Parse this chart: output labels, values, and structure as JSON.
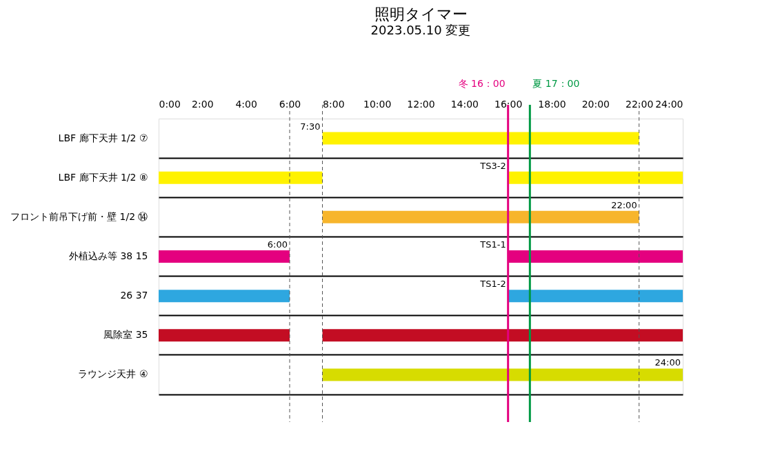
{
  "chart_data": {
    "type": "bar",
    "orientation": "horizontal",
    "title": "照明タイマー",
    "subtitle": "2023.05.10 変更",
    "categories": [
      "LBF 廊下天井 1/2  ⑦",
      "LBF 廊下天井 1/2  ⑧",
      "フロント前吊下げ前・壁 1/2  ⑭",
      "外植込み等  38  15",
      "26  37",
      "風除室  35",
      "ラウンジ天井  ④"
    ],
    "series": [
      {
        "base": [
          7.5,
          0,
          7.5,
          0,
          0,
          0,
          7.5
        ],
        "values": [
          14.5,
          7.5,
          14.5,
          6,
          6,
          6,
          16.5
        ],
        "colors": [
          "#fff200",
          "#fff200",
          "#f7b52c",
          "#e4007f",
          "#2ea7e0",
          "#c30d23",
          "#d7dc00"
        ]
      },
      {
        "base": [
          null,
          16,
          null,
          16,
          16,
          7.5,
          null
        ],
        "values": [
          null,
          8,
          null,
          8,
          8,
          16.5,
          null
        ],
        "colors": [
          null,
          "#fff200",
          null,
          "#e4007f",
          "#2ea7e0",
          "#c30d23",
          null
        ]
      }
    ],
    "xlim": [
      0,
      24
    ],
    "xticks": [
      {
        "value": 0,
        "label": "0:00"
      },
      {
        "value": 2,
        "label": "2:00"
      },
      {
        "value": 4,
        "label": "4:00"
      },
      {
        "value": 6,
        "label": "6:00"
      },
      {
        "value": 8,
        "label": "8:00"
      },
      {
        "value": 10,
        "label": "10:00"
      },
      {
        "value": 12,
        "label": "12:00"
      },
      {
        "value": 14,
        "label": "14:00"
      },
      {
        "value": 16,
        "label": "16:00"
      },
      {
        "value": 18,
        "label": "18:00"
      },
      {
        "value": 20,
        "label": "20:00"
      },
      {
        "value": 22,
        "label": "22:00"
      },
      {
        "value": 24,
        "label": "24:00"
      }
    ],
    "ref_lines": [
      {
        "axis": "x",
        "value": 16,
        "label": "冬 16：00",
        "color": "#e4007f",
        "line_style": "solid"
      },
      {
        "axis": "x",
        "value": 17,
        "label": "夏 17：00",
        "color": "#009944",
        "line_style": "solid"
      },
      {
        "axis": "x",
        "value": 6,
        "label": null,
        "color": "#555555",
        "line_style": "dashed"
      },
      {
        "axis": "x",
        "value": 7.5,
        "label": null,
        "color": "#555555",
        "line_style": "dashed"
      },
      {
        "axis": "x",
        "value": 22,
        "label": null,
        "color": "#555555",
        "line_style": "dashed"
      }
    ],
    "annotations": [
      {
        "text": "7:30",
        "x": 7.5,
        "y": "LBF 廊下天井 1/2  ⑦"
      },
      {
        "text": "TS3-2",
        "x": 16,
        "y": "LBF 廊下天井 1/2  ⑧"
      },
      {
        "text": "22:00",
        "x": 22,
        "y": "フロント前吊下げ前・壁 1/2  ⑭"
      },
      {
        "text": "6:00",
        "x": 6,
        "y": "外植込み等  38  15"
      },
      {
        "text": "TS1-1",
        "x": 16,
        "y": "外植込み等  38  15"
      },
      {
        "text": "TS1-2",
        "x": 16,
        "y": "26  37"
      },
      {
        "text": "24:00",
        "x": 24,
        "y": "ラウンジ天井  ④"
      }
    ],
    "grid": "y"
  }
}
